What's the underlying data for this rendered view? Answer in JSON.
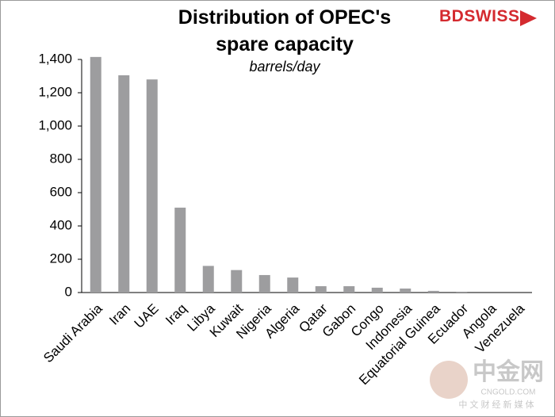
{
  "chart_data": {
    "type": "bar",
    "title": "Distribution of OPEC's spare capacity",
    "subtitle": "barrels/day",
    "logo": "BDSWISS",
    "watermark": {
      "name": "中金网",
      "site": "CNGOLD.COM",
      "tagline": "中 文 财 经 新 媒 体"
    },
    "categories": [
      "Saudi Arabia",
      "Iran",
      "UAE",
      "Iraq",
      "Libya",
      "Kuwait",
      "Nigeria",
      "Algeria",
      "Qatar",
      "Gabon",
      "Congo",
      "Indonesia",
      "Equatorial Guinea",
      "Ecuador",
      "Angola",
      "Venezuela"
    ],
    "values": [
      1415,
      1305,
      1280,
      510,
      160,
      135,
      105,
      90,
      38,
      38,
      29,
      24,
      10,
      5,
      0,
      0
    ],
    "color": "#9d9d9f",
    "ylim": [
      0,
      1400
    ],
    "yticks": [
      0,
      200,
      400,
      600,
      800,
      {
        "value": 1000,
        "label": "1,000"
      },
      {
        "value": 1200,
        "label": "1,200"
      },
      {
        "value": 1400,
        "label": "1,400"
      }
    ],
    "grid": false
  }
}
